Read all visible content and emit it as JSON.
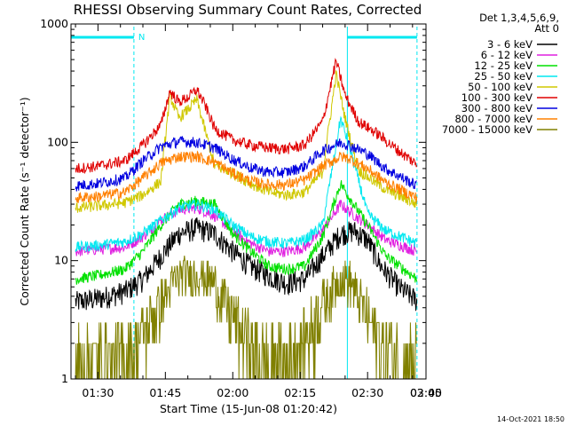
{
  "chart_data": {
    "type": "line",
    "title": "RHESSI Observing Summary Count Rates, Corrected",
    "xlabel": "Start Time (15-Jun-08 01:20:42)",
    "ylabel": "Corrected Count Rate (s⁻¹ detector⁻¹)",
    "y_scale": "log",
    "ylim": [
      1,
      1000
    ],
    "xlim_minutes_after_0100": [
      24,
      103
    ],
    "x_ticks": [
      "01:30",
      "01:45",
      "02:00",
      "02:15",
      "02:30",
      "02:45",
      "03:00"
    ],
    "y_ticks": [
      "1",
      "10",
      "100",
      "1000"
    ],
    "legend_header": [
      "Det 1,3,4,5,6,9,",
      "Att 0"
    ],
    "legend_placement": "right",
    "timestamp": "14-Oct-2021 18:50",
    "night_marker_label": "N",
    "night_intervals_minutes_after_0100": [
      [
        24,
        38
      ],
      [
        85.5,
        101
      ]
    ],
    "series": [
      {
        "name": "3 - 6 keV",
        "color": "#000000",
        "values": [
          [
            25,
            4.5
          ],
          [
            30,
            4.8
          ],
          [
            36,
            5.5
          ],
          [
            40,
            7
          ],
          [
            44,
            11
          ],
          [
            48,
            17
          ],
          [
            52,
            19
          ],
          [
            56,
            17
          ],
          [
            60,
            12
          ],
          [
            64,
            9
          ],
          [
            68,
            7.5
          ],
          [
            72,
            6.5
          ],
          [
            76,
            7
          ],
          [
            80,
            11
          ],
          [
            84,
            17
          ],
          [
            87,
            18
          ],
          [
            90,
            15
          ],
          [
            93,
            9
          ],
          [
            97,
            6
          ],
          [
            101,
            4.6
          ]
        ]
      },
      {
        "name": "6 - 12 keV",
        "color": "#e020e0",
        "values": [
          [
            25,
            12
          ],
          [
            30,
            12.5
          ],
          [
            36,
            13
          ],
          [
            40,
            16
          ],
          [
            44,
            22
          ],
          [
            48,
            27
          ],
          [
            52,
            28
          ],
          [
            56,
            24
          ],
          [
            60,
            18
          ],
          [
            64,
            14
          ],
          [
            68,
            12
          ],
          [
            72,
            12
          ],
          [
            76,
            13
          ],
          [
            80,
            18
          ],
          [
            84,
            30
          ],
          [
            86,
            26
          ],
          [
            90,
            20
          ],
          [
            94,
            15
          ],
          [
            101,
            12
          ]
        ]
      },
      {
        "name": "12 - 25 keV",
        "color": "#00e000",
        "values": [
          [
            25,
            7
          ],
          [
            30,
            7.5
          ],
          [
            36,
            8.5
          ],
          [
            40,
            12
          ],
          [
            44,
            20
          ],
          [
            48,
            30
          ],
          [
            52,
            32
          ],
          [
            56,
            30
          ],
          [
            60,
            17
          ],
          [
            64,
            12
          ],
          [
            68,
            9
          ],
          [
            72,
            8.5
          ],
          [
            76,
            9
          ],
          [
            80,
            16
          ],
          [
            84,
            45
          ],
          [
            86,
            34
          ],
          [
            90,
            20
          ],
          [
            94,
            11
          ],
          [
            101,
            7
          ]
        ]
      },
      {
        "name": "25 - 50 keV",
        "color": "#00e8f0",
        "values": [
          [
            25,
            13
          ],
          [
            30,
            13.5
          ],
          [
            36,
            14.5
          ],
          [
            40,
            17
          ],
          [
            44,
            22
          ],
          [
            48,
            28
          ],
          [
            52,
            30
          ],
          [
            56,
            27
          ],
          [
            60,
            20
          ],
          [
            64,
            16
          ],
          [
            68,
            14.5
          ],
          [
            72,
            14
          ],
          [
            76,
            15
          ],
          [
            80,
            20
          ],
          [
            84,
            160
          ],
          [
            86,
            90
          ],
          [
            90,
            25
          ],
          [
            94,
            18
          ],
          [
            101,
            14
          ]
        ]
      },
      {
        "name": "50 - 100 keV",
        "color": "#d0c800",
        "values": [
          [
            25,
            28
          ],
          [
            30,
            29
          ],
          [
            36,
            31
          ],
          [
            40,
            36
          ],
          [
            44,
            47
          ],
          [
            46,
            250
          ],
          [
            48,
            160
          ],
          [
            50,
            190
          ],
          [
            52,
            230
          ],
          [
            54,
            120
          ],
          [
            56,
            63
          ],
          [
            60,
            55
          ],
          [
            64,
            45
          ],
          [
            68,
            38
          ],
          [
            72,
            36
          ],
          [
            76,
            38
          ],
          [
            80,
            56
          ],
          [
            83,
            380
          ],
          [
            85,
            160
          ],
          [
            88,
            58
          ],
          [
            94,
            40
          ],
          [
            101,
            30
          ]
        ]
      },
      {
        "name": "100 - 300 keV",
        "color": "#e00000",
        "values": [
          [
            25,
            60
          ],
          [
            30,
            63
          ],
          [
            36,
            70
          ],
          [
            40,
            95
          ],
          [
            44,
            140
          ],
          [
            46,
            270
          ],
          [
            48,
            220
          ],
          [
            50,
            240
          ],
          [
            52,
            280
          ],
          [
            54,
            200
          ],
          [
            56,
            130
          ],
          [
            60,
            105
          ],
          [
            64,
            95
          ],
          [
            68,
            90
          ],
          [
            72,
            88
          ],
          [
            76,
            95
          ],
          [
            80,
            150
          ],
          [
            83,
            490
          ],
          [
            85,
            250
          ],
          [
            88,
            150
          ],
          [
            92,
            120
          ],
          [
            96,
            90
          ],
          [
            101,
            65
          ]
        ]
      },
      {
        "name": "300 - 800 keV",
        "color": "#0000e0",
        "values": [
          [
            25,
            43
          ],
          [
            30,
            45
          ],
          [
            36,
            50
          ],
          [
            40,
            70
          ],
          [
            44,
            92
          ],
          [
            48,
            102
          ],
          [
            52,
            100
          ],
          [
            56,
            90
          ],
          [
            60,
            72
          ],
          [
            64,
            61
          ],
          [
            68,
            56
          ],
          [
            72,
            56
          ],
          [
            76,
            63
          ],
          [
            80,
            85
          ],
          [
            84,
            100
          ],
          [
            86,
            95
          ],
          [
            90,
            80
          ],
          [
            94,
            60
          ],
          [
            101,
            43
          ]
        ]
      },
      {
        "name": "800 - 7000 keV",
        "color": "#ff8000",
        "values": [
          [
            25,
            34
          ],
          [
            30,
            35
          ],
          [
            36,
            38
          ],
          [
            40,
            50
          ],
          [
            44,
            67
          ],
          [
            48,
            76
          ],
          [
            52,
            76
          ],
          [
            56,
            68
          ],
          [
            60,
            55
          ],
          [
            64,
            47
          ],
          [
            68,
            44
          ],
          [
            72,
            44
          ],
          [
            76,
            48
          ],
          [
            80,
            63
          ],
          [
            84,
            76
          ],
          [
            86,
            73
          ],
          [
            90,
            60
          ],
          [
            94,
            46
          ],
          [
            101,
            34
          ]
        ]
      },
      {
        "name": "7000 - 15000 keV",
        "color": "#808000",
        "values": [
          [
            25,
            1.5
          ],
          [
            30,
            1.5
          ],
          [
            36,
            1.6
          ],
          [
            40,
            2.4
          ],
          [
            44,
            4.5
          ],
          [
            48,
            7.5
          ],
          [
            52,
            8
          ],
          [
            56,
            6.5
          ],
          [
            60,
            3.5
          ],
          [
            64,
            2
          ],
          [
            68,
            1.4
          ],
          [
            72,
            1.4
          ],
          [
            76,
            2.2
          ],
          [
            80,
            4.5
          ],
          [
            84,
            7.5
          ],
          [
            86,
            7
          ],
          [
            90,
            3.5
          ],
          [
            94,
            1.8
          ],
          [
            101,
            1.4
          ]
        ]
      }
    ]
  }
}
